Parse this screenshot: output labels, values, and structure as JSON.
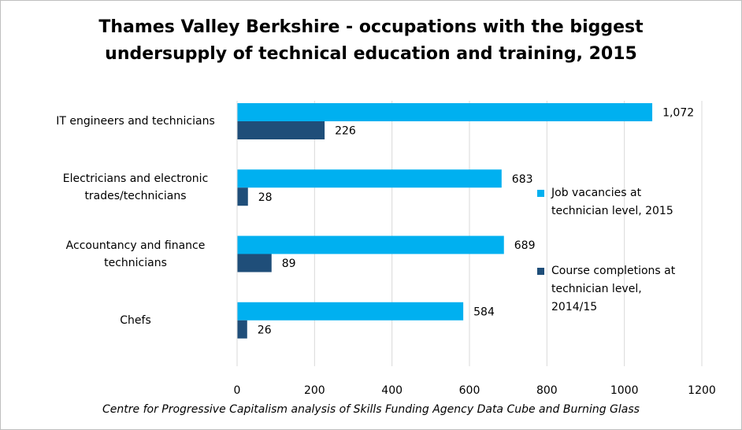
{
  "chart_data": {
    "type": "bar",
    "orientation": "horizontal",
    "title": "Thames Valley Berkshire - occupations with the biggest undersupply of technical education and training, 2015",
    "title_lines": [
      "Thames Valley Berkshire - occupations with the biggest",
      "undersupply of technical education and training, 2015"
    ],
    "categories": [
      "IT engineers and technicians",
      "Electricians and electronic trades/technicians",
      "Accountancy and finance technicians",
      "Chefs"
    ],
    "category_lines": [
      [
        "IT engineers and technicians"
      ],
      [
        "Electricians and electronic",
        "trades/technicians"
      ],
      [
        "Accountancy and finance",
        "technicians"
      ],
      [
        "Chefs"
      ]
    ],
    "series": [
      {
        "name": "Job vacancies at technician level, 2015",
        "legend_lines": [
          "Job vacancies at",
          "technician level, 2015"
        ],
        "color": "#00b0f0",
        "values": [
          1072,
          683,
          689,
          584
        ],
        "labels": [
          "1,072",
          "683",
          "689",
          "584"
        ]
      },
      {
        "name": "Course completions at technician level, 2014/15",
        "legend_lines": [
          "Course completions at",
          "technician level,",
          "2014/15"
        ],
        "color": "#1f4e79",
        "values": [
          226,
          28,
          89,
          26
        ],
        "labels": [
          "226",
          "28",
          "89",
          "26"
        ]
      }
    ],
    "xlim": [
      0,
      1200
    ],
    "xticks": [
      0,
      200,
      400,
      600,
      800,
      1000,
      1200
    ],
    "grid": true,
    "legend_position": "right",
    "source": "Centre for Progressive Capitalism analysis of Skills Funding Agency Data Cube and Burning Glass"
  }
}
